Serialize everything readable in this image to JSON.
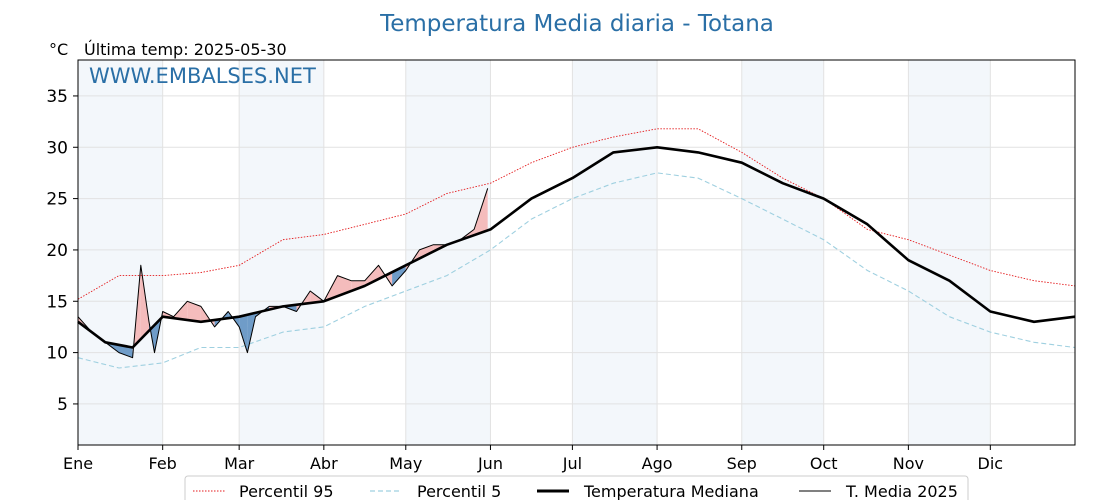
{
  "chart_data": {
    "type": "line",
    "title": "Temperatura Media diaria - Totana",
    "unit_label": "°C",
    "last_temp_label": "Última temp: 2025-05-30",
    "watermark": "WWW.EMBALSES.NET",
    "x_range_days": [
      0,
      365
    ],
    "ylim": [
      1,
      38.5
    ],
    "y_ticks": [
      5,
      10,
      15,
      20,
      25,
      30,
      35
    ],
    "grid": true,
    "legend_placement": "bottom",
    "months": [
      {
        "label": "Ene",
        "day": 0
      },
      {
        "label": "Feb",
        "day": 31
      },
      {
        "label": "Mar",
        "day": 59
      },
      {
        "label": "Abr",
        "day": 90
      },
      {
        "label": "May",
        "day": 120
      },
      {
        "label": "Jun",
        "day": 151
      },
      {
        "label": "Jul",
        "day": 181
      },
      {
        "label": "Ago",
        "day": 212
      },
      {
        "label": "Sep",
        "day": 243
      },
      {
        "label": "Oct",
        "day": 273
      },
      {
        "label": "Nov",
        "day": 304
      },
      {
        "label": "Dic",
        "day": 334
      }
    ],
    "shaded_months": [
      "Ene",
      "Mar",
      "May",
      "Jul",
      "Sep",
      "Nov"
    ],
    "series": [
      {
        "name": "Percentil 95",
        "color": "#e41a1c",
        "style": "dotted",
        "points": [
          [
            0,
            15.2
          ],
          [
            15,
            17.5
          ],
          [
            31,
            17.5
          ],
          [
            45,
            17.8
          ],
          [
            59,
            18.5
          ],
          [
            75,
            21.0
          ],
          [
            90,
            21.5
          ],
          [
            105,
            22.5
          ],
          [
            120,
            23.5
          ],
          [
            135,
            25.5
          ],
          [
            151,
            26.5
          ],
          [
            166,
            28.5
          ],
          [
            181,
            30.0
          ],
          [
            196,
            31.0
          ],
          [
            212,
            31.8
          ],
          [
            227,
            31.8
          ],
          [
            243,
            29.5
          ],
          [
            258,
            27.0
          ],
          [
            273,
            25.0
          ],
          [
            289,
            22.0
          ],
          [
            304,
            21.0
          ],
          [
            319,
            19.5
          ],
          [
            334,
            18.0
          ],
          [
            350,
            17.0
          ],
          [
            365,
            16.5
          ]
        ]
      },
      {
        "name": "Percentil 5",
        "color": "#9fd0e0",
        "style": "dashed",
        "points": [
          [
            0,
            9.5
          ],
          [
            15,
            8.5
          ],
          [
            31,
            9.0
          ],
          [
            45,
            10.5
          ],
          [
            59,
            10.5
          ],
          [
            75,
            12.0
          ],
          [
            90,
            12.5
          ],
          [
            105,
            14.5
          ],
          [
            120,
            16.0
          ],
          [
            135,
            17.5
          ],
          [
            151,
            20.0
          ],
          [
            166,
            23.0
          ],
          [
            181,
            25.0
          ],
          [
            196,
            26.5
          ],
          [
            212,
            27.5
          ],
          [
            227,
            27.0
          ],
          [
            243,
            25.0
          ],
          [
            258,
            23.0
          ],
          [
            273,
            21.0
          ],
          [
            289,
            18.0
          ],
          [
            304,
            16.0
          ],
          [
            319,
            13.5
          ],
          [
            334,
            12.0
          ],
          [
            350,
            11.0
          ],
          [
            365,
            10.5
          ]
        ]
      },
      {
        "name": "Temperatura Mediana",
        "color": "#000000",
        "style": "thick",
        "points": [
          [
            0,
            13.0
          ],
          [
            10,
            11.0
          ],
          [
            20,
            10.5
          ],
          [
            31,
            13.5
          ],
          [
            45,
            13.0
          ],
          [
            59,
            13.5
          ],
          [
            75,
            14.5
          ],
          [
            90,
            15.0
          ],
          [
            105,
            16.5
          ],
          [
            120,
            18.5
          ],
          [
            135,
            20.5
          ],
          [
            151,
            22.0
          ],
          [
            166,
            25.0
          ],
          [
            181,
            27.0
          ],
          [
            196,
            29.5
          ],
          [
            212,
            30.0
          ],
          [
            227,
            29.5
          ],
          [
            243,
            28.5
          ],
          [
            258,
            26.5
          ],
          [
            273,
            25.0
          ],
          [
            289,
            22.5
          ],
          [
            304,
            19.0
          ],
          [
            319,
            17.0
          ],
          [
            334,
            14.0
          ],
          [
            350,
            13.0
          ],
          [
            365,
            13.5
          ]
        ]
      },
      {
        "name": "T. Media 2025",
        "color": "#000000",
        "style": "thin",
        "points": [
          [
            0,
            13.5
          ],
          [
            5,
            12.0
          ],
          [
            10,
            11.0
          ],
          [
            15,
            10.0
          ],
          [
            20,
            9.5
          ],
          [
            23,
            18.5
          ],
          [
            26,
            13.0
          ],
          [
            28,
            10.0
          ],
          [
            31,
            14.0
          ],
          [
            35,
            13.5
          ],
          [
            40,
            15.0
          ],
          [
            45,
            14.5
          ],
          [
            50,
            12.5
          ],
          [
            55,
            14.0
          ],
          [
            59,
            12.5
          ],
          [
            62,
            10.0
          ],
          [
            65,
            13.5
          ],
          [
            70,
            14.5
          ],
          [
            75,
            14.5
          ],
          [
            80,
            14.0
          ],
          [
            85,
            16.0
          ],
          [
            90,
            15.0
          ],
          [
            95,
            17.5
          ],
          [
            100,
            17.0
          ],
          [
            105,
            17.0
          ],
          [
            110,
            18.5
          ],
          [
            115,
            16.5
          ],
          [
            120,
            18.0
          ],
          [
            125,
            20.0
          ],
          [
            130,
            20.5
          ],
          [
            135,
            20.5
          ],
          [
            140,
            21.0
          ],
          [
            145,
            22.0
          ],
          [
            150,
            26.0
          ]
        ]
      }
    ],
    "fill_above_color": "#f4bcbc",
    "fill_below_color": "#6f9cc8"
  },
  "legend": {
    "p95": "Percentil 95",
    "p5": "Percentil 5",
    "median": "Temperatura Mediana",
    "y2025": "T. Media 2025"
  }
}
